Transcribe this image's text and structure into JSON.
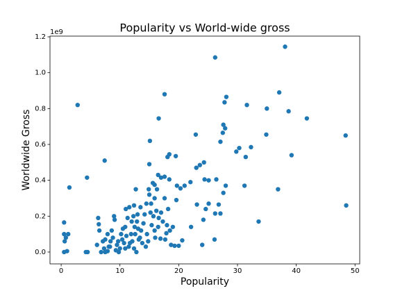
{
  "chart_data": {
    "type": "scatter",
    "title": "Popularity vs World-wide gross",
    "x_label": "Popularity",
    "y_label": "Worldwide Gross",
    "y_offset_label": "1e9",
    "color": "#1f77b4",
    "x": [
      2.8,
      1.4,
      0.5,
      0.5,
      0.8,
      0.6,
      1.2,
      0.5,
      1.0,
      4.4,
      4.5,
      4.2,
      7.4,
      17.6,
      16.6,
      15.1,
      26.2,
      38.1,
      28.1,
      27.8,
      31.6,
      37.1,
      35,
      38.7,
      41.8,
      27.6,
      27.9,
      27.5,
      22.9,
      34.9,
      48.4,
      27.1,
      29.8,
      30.3,
      31.4,
      32.3,
      39.2,
      18.4,
      18.1,
      19.5,
      15,
      16.5,
      23,
      23.6,
      24.3,
      17.6,
      17,
      18.4,
      15.6,
      15.9,
      16.3,
      14.9,
      12.7,
      19.7,
      20.3,
      21,
      22,
      24.4,
      25.1,
      26.4,
      27.6,
      28,
      31.2,
      36.9,
      19.6,
      15.9,
      15,
      15.3,
      12.4,
      13.5,
      14.5,
      17.6,
      23.1,
      25.1,
      26.8,
      24.6,
      26.2,
      27.1,
      24.2,
      22.1,
      20.6,
      26.1,
      24,
      33.6,
      48.5,
      6.3,
      6.4,
      6.5,
      6.1,
      7.1,
      7.5,
      7.9,
      8.4,
      8.6,
      9,
      9.1,
      8.8,
      9.5,
      10.2,
      10.5,
      10.9,
      11,
      11.6,
      11.3,
      11.9,
      12,
      12.3,
      12.5,
      13,
      13.2,
      13.6,
      14,
      14.2,
      14.4,
      14.6,
      15.2,
      15.4,
      15.7,
      16,
      16.2,
      16.5,
      17,
      17.3,
      17.7,
      18,
      18.2,
      18.5,
      18.7,
      19.3,
      20,
      19,
      16.9,
      7.3,
      7.9,
      8.1,
      9.3,
      10,
      10.7,
      11.5,
      12.1,
      12.8,
      13.8,
      9.8,
      10.4,
      11.1,
      12.6,
      13.4,
      9.7,
      10.9,
      8.3,
      6.8,
      7.5,
      14.8,
      15.9,
      17.9,
      16.6,
      12.9,
      11.7,
      12.4,
      13.1
    ],
    "values": [
      0.82,
      0.36,
      0.165,
      0.1,
      0.08,
      0.06,
      0.1,
      0.0,
      0.005,
      0.415,
      0.0,
      0.0,
      0.51,
      0.88,
      0.745,
      0.62,
      1.085,
      1.145,
      0.865,
      0.835,
      0.82,
      0.89,
      0.8,
      0.785,
      0.745,
      0.71,
      0.69,
      0.665,
      0.655,
      0.655,
      0.65,
      0.615,
      0.56,
      0.58,
      0.53,
      0.585,
      0.54,
      0.545,
      0.53,
      0.535,
      0.49,
      0.43,
      0.47,
      0.485,
      0.5,
      0.42,
      0.415,
      0.405,
      0.385,
      0.375,
      0.35,
      0.35,
      0.35,
      0.37,
      0.355,
      0.37,
      0.39,
      0.405,
      0.4,
      0.405,
      0.33,
      0.37,
      0.37,
      0.35,
      0.29,
      0.3,
      0.32,
      0.27,
      0.26,
      0.25,
      0.27,
      0.3,
      0.265,
      0.27,
      0.265,
      0.24,
      0.215,
      0.215,
      0.18,
      0.14,
      0.065,
      0.07,
      0.04,
      0.17,
      0.26,
      0.19,
      0.155,
      0.12,
      0.04,
      0.06,
      0.07,
      0.1,
      0.06,
      0.12,
      0.2,
      0.18,
      0.08,
      0.04,
      0.1,
      0.13,
      0.14,
      0.24,
      0.25,
      0.19,
      0.1,
      0.17,
      0.2,
      0.14,
      0.21,
      0.07,
      0.12,
      0.16,
      0.21,
      0.03,
      0.1,
      0.22,
      0.15,
      0.2,
      0.08,
      0.23,
      0.14,
      0.22,
      0.17,
      0.07,
      0.15,
      0.24,
      0.12,
      0.04,
      0.035,
      0.035,
      0.14,
      0.075,
      0.02,
      0.005,
      0.03,
      0.01,
      0.02,
      0.05,
      0.03,
      0.06,
      0.0,
      0.05,
      0.0,
      0.07,
      0.09,
      0.1,
      0.08,
      0.06,
      0.02,
      0.03,
      0.0,
      0.0,
      0.06,
      0.12,
      0.105,
      0.19,
      0.17,
      0.05,
      0.02,
      0.13
    ],
    "xlim": [
      -1.9,
      50.8
    ],
    "ylim": [
      -0.066,
      1.204
    ],
    "xticks": [
      0,
      10,
      20,
      30,
      40,
      50
    ],
    "yticks": [
      {
        "value": 0,
        "label": "0.0"
      },
      {
        "value": 0.2,
        "label": "0.2"
      },
      {
        "value": 0.4,
        "label": "0.4"
      },
      {
        "value": 0.6,
        "label": "0.6"
      },
      {
        "value": 0.8,
        "label": "0.8"
      },
      {
        "value": 1.0,
        "label": "1.0"
      },
      {
        "value": 1.2,
        "label": "1.2"
      }
    ]
  }
}
